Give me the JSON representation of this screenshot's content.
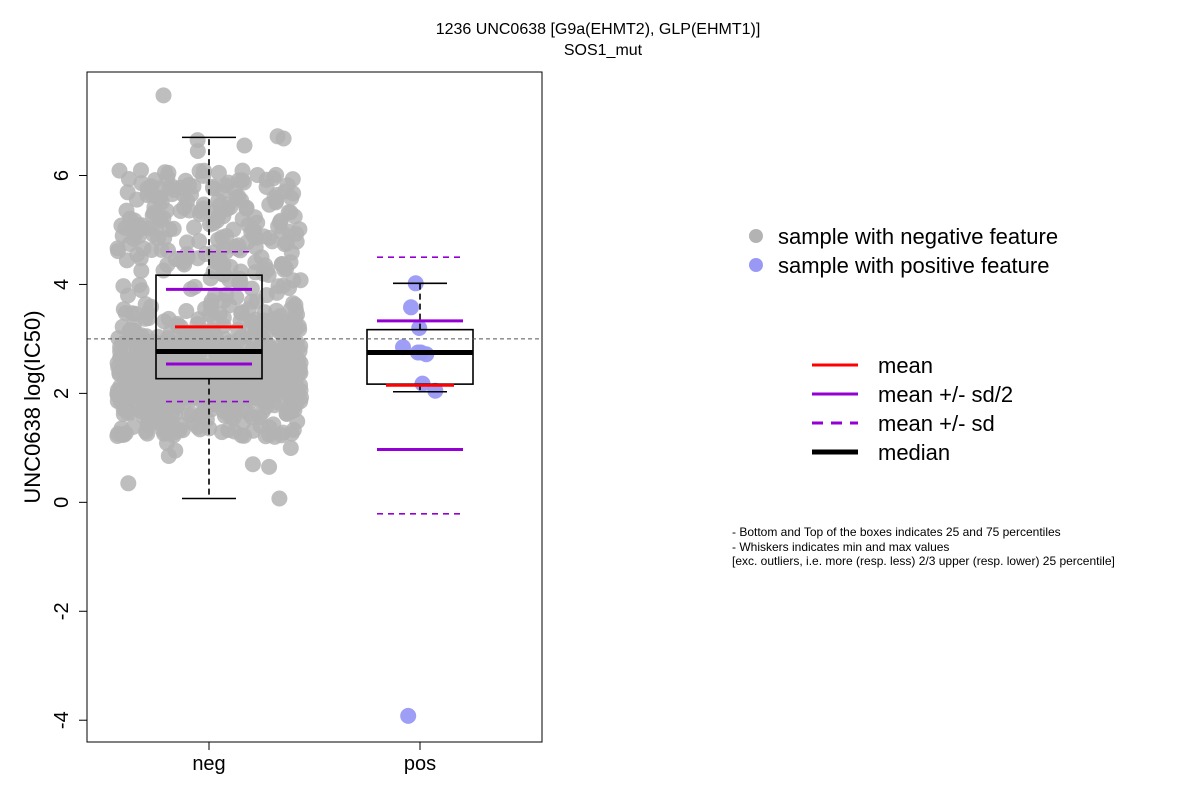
{
  "chart_data": {
    "type": "boxplot",
    "title": "1236 UNC0638 [G9a(EHMT2), GLP(EHMT1)]",
    "subtitle": "SOS1_mut",
    "ylabel": "UNC0638 log(IC50)",
    "xlabel": "",
    "ylim": [
      -4.4,
      7.9
    ],
    "yticks": [
      -4,
      -2,
      0,
      2,
      4,
      6
    ],
    "reference_line": 3.0,
    "categories": [
      "neg",
      "pos"
    ],
    "groups": [
      {
        "name": "neg",
        "color": "#b3b3b3",
        "q1": 2.27,
        "median": 2.77,
        "q3": 4.17,
        "whisker_low": 0.07,
        "whisker_high": 6.7,
        "mean": 3.22,
        "mean_minus_half_sd": 2.54,
        "mean_plus_half_sd": 3.91,
        "mean_minus_sd": 1.85,
        "mean_plus_sd": 4.6,
        "n_points": 900,
        "points_extra": [
          7.47,
          6.72,
          6.68,
          6.65,
          6.55,
          6.45,
          0.07,
          0.35,
          0.65,
          0.7,
          0.85,
          0.95
        ]
      },
      {
        "name": "pos",
        "color": "#9999f5",
        "q1": 2.17,
        "median": 2.75,
        "q3": 3.17,
        "whisker_low": 2.03,
        "whisker_high": 4.02,
        "mean": 2.15,
        "mean_minus_half_sd": 0.97,
        "mean_plus_half_sd": 3.33,
        "mean_minus_sd": -0.21,
        "mean_plus_sd": 4.5,
        "points": [
          4.02,
          3.58,
          3.2,
          2.85,
          2.75,
          2.72,
          2.75,
          2.18,
          2.05,
          -3.92
        ]
      }
    ],
    "legend_points": [
      {
        "label": "sample with negative feature",
        "color": "#b3b3b3"
      },
      {
        "label": "sample with positive feature",
        "color": "#9999f5"
      }
    ],
    "legend_lines": [
      {
        "label": "mean",
        "color": "#ff0000",
        "style": "solid"
      },
      {
        "label": "mean +/- sd/2",
        "color": "#9400d3",
        "style": "solid"
      },
      {
        "label": "mean +/- sd",
        "color": "#9400d3",
        "style": "dashed"
      },
      {
        "label": "median",
        "color": "#000000",
        "style": "thick"
      }
    ],
    "notes": [
      "- Bottom and Top of the boxes indicates 25 and 75 percentiles",
      "- Whiskers indicates min and max values",
      "[exc. outliers, i.e. more (resp. less) 2/3 upper (resp. lower) 25 percentile]"
    ],
    "colors": {
      "mean": "#ff0000",
      "sd": "#9400d3",
      "median": "#000000",
      "refline": "#555555"
    }
  }
}
